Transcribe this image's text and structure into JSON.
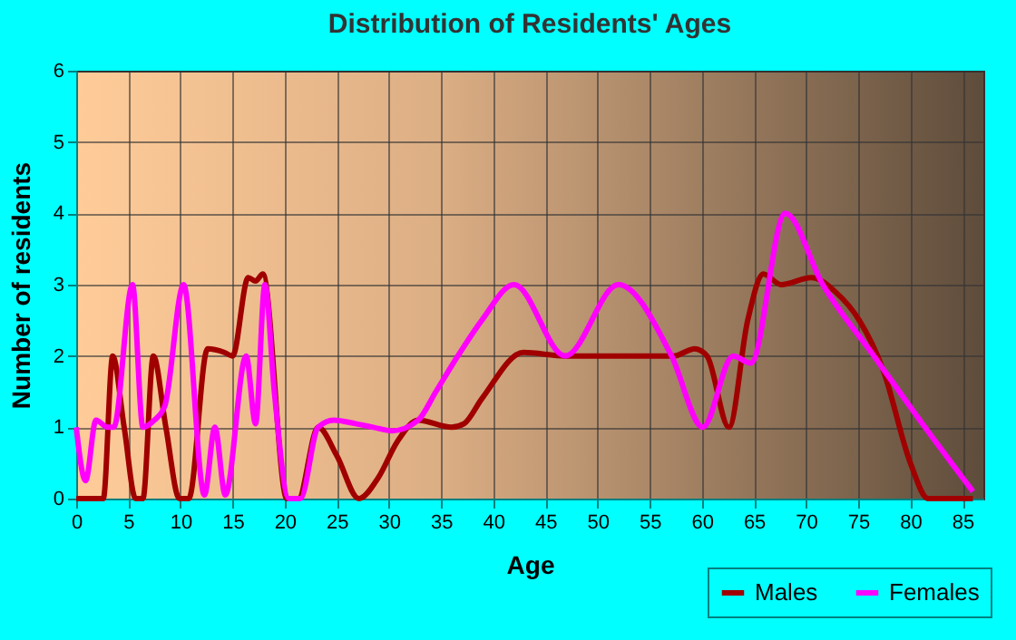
{
  "chart_data": {
    "type": "line",
    "title": "Distribution of Residents' Ages",
    "xlabel": "Age",
    "ylabel": "Number of residents",
    "xlim": [
      0,
      87
    ],
    "xticks": [
      0,
      5,
      10,
      15,
      20,
      25,
      30,
      35,
      40,
      45,
      50,
      55,
      60,
      65,
      70,
      75,
      80,
      85
    ],
    "ylim": [
      0,
      6
    ],
    "yticks": [
      0,
      1,
      2,
      3,
      4,
      5,
      6
    ],
    "grid": true,
    "legend": "bottom right",
    "marker": "none",
    "line_style": "solid",
    "series": [
      {
        "name": "Males",
        "color": "#a00000",
        "x": [
          0,
          2.6,
          3.5,
          4.6,
          5.7,
          6.4,
          7.4,
          8.6,
          9.9,
          10.8,
          12.6,
          14.2,
          15,
          16.5,
          17.2,
          17.9,
          20.2,
          21.3,
          23.2,
          25,
          27.1,
          29,
          30.8,
          32.8,
          36,
          37.2,
          38.9,
          42.9,
          46.9,
          57.3,
          59.3,
          60.5,
          62.6,
          64.4,
          65.9,
          67.6,
          70.5,
          72.8,
          75.1,
          77.4,
          80,
          81.7,
          86
        ],
        "values": [
          0,
          0,
          2,
          1,
          0,
          0,
          2,
          1,
          0,
          0,
          2.1,
          2.05,
          2,
          3.1,
          3.05,
          3.15,
          0,
          0,
          1,
          0.6,
          0,
          0.3,
          0.8,
          1.1,
          1,
          1.05,
          1.4,
          2.05,
          2,
          2,
          2.1,
          2,
          1,
          2.5,
          3.15,
          3,
          3.1,
          2.9,
          2.5,
          1.8,
          0.5,
          0,
          0
        ]
      },
      {
        "name": "Females",
        "color": "#ff00ff",
        "x": [
          0,
          0.9,
          1.9,
          3,
          3.6,
          5.4,
          6.4,
          7.5,
          8.5,
          10.3,
          12.3,
          13.3,
          14.3,
          16.3,
          17.2,
          18.1,
          19,
          20.4,
          21.5,
          23.2,
          24.7,
          26.8,
          28.5,
          30.3,
          32.8,
          34.5,
          36.6,
          38.9,
          42,
          46.9,
          52,
          57.1,
          60.1,
          63,
          64.7,
          68,
          71.6,
          76.5,
          81.4,
          86
        ],
        "values": [
          1,
          0.25,
          1.1,
          1,
          1,
          3,
          1,
          1.1,
          1.3,
          3,
          0.05,
          1,
          0.05,
          2,
          1.05,
          3,
          1.5,
          0,
          0,
          1,
          1.1,
          1.05,
          1,
          0.95,
          1.1,
          1.5,
          2,
          2.5,
          3,
          2,
          3,
          2,
          1,
          2,
          1.9,
          4,
          3,
          2,
          1,
          0.1
        ]
      }
    ]
  }
}
